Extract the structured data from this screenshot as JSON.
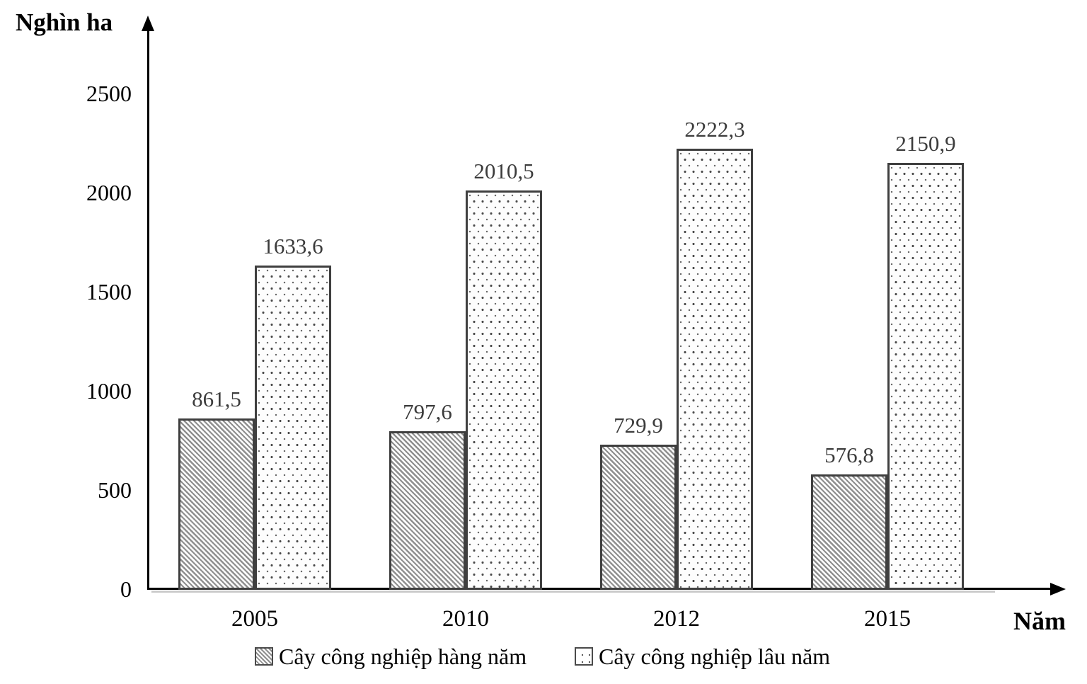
{
  "chart_data": {
    "type": "bar",
    "title": "",
    "ylabel": "Nghìn ha",
    "xlabel": "Năm",
    "categories": [
      "2005",
      "2010",
      "2012",
      "2015"
    ],
    "series": [
      {
        "name": "Cây công nghiệp hàng năm",
        "pattern": "diagonal-hatch",
        "values": [
          861.5,
          797.6,
          729.9,
          576.8
        ],
        "value_labels": [
          "861,5",
          "797,6",
          "729,9",
          "576,8"
        ]
      },
      {
        "name": "Cây công nghiệp lâu năm",
        "pattern": "dots",
        "values": [
          1633.6,
          2010.5,
          2222.3,
          2150.9
        ],
        "value_labels": [
          "1633,6",
          "2010,5",
          "2222,3",
          "2150,9"
        ]
      }
    ],
    "ylim": [
      0,
      2500
    ],
    "yticks": [
      "0",
      "500",
      "1000",
      "1500",
      "2000",
      "2500"
    ],
    "grid": false,
    "legend_position": "bottom",
    "value_labels_shown": true
  },
  "colors": {
    "axis": "#000000",
    "bar_border": "#3f3f3f",
    "hatch_line": "#8f8f8f",
    "dot": "#4a4a4a",
    "value_label_text": "#3c3c3c",
    "axis_shadow": "#c9c9c9",
    "background": "#ffffff"
  }
}
